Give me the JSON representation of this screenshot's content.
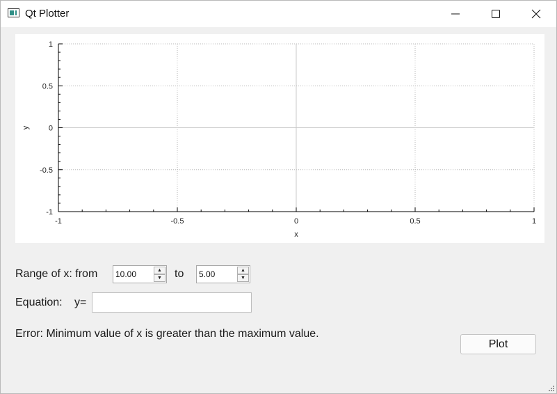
{
  "window": {
    "title": "Qt Plotter",
    "controls": {
      "minimize_icon": "minimize-icon",
      "maximize_icon": "maximize-icon",
      "close_icon": "close-icon"
    }
  },
  "plot": {
    "xlabel": "x",
    "ylabel": "y",
    "xlim": [
      -1,
      1
    ],
    "ylim": [
      -1,
      1
    ],
    "x_ticks": [
      "-1",
      "-0.5",
      "0",
      "0.5",
      "1"
    ],
    "y_ticks": [
      "1",
      "0.5",
      "0",
      "-0.5",
      "-1"
    ],
    "grid": true
  },
  "chart_data": {
    "type": "line",
    "title": "",
    "xlabel": "x",
    "ylabel": "y",
    "xlim": [
      -1,
      1
    ],
    "ylim": [
      -1,
      1
    ],
    "x_tick_labels": [
      "-1",
      "-0.5",
      "0",
      "0.5",
      "1"
    ],
    "y_tick_labels": [
      "-1",
      "-0.5",
      "0",
      "0.5",
      "1"
    ],
    "series": [],
    "grid": true
  },
  "range": {
    "label": "Range of x: from",
    "from_value": "10.00",
    "to_label": "to",
    "to_value": "5.00"
  },
  "equation": {
    "label": "Equation:",
    "prefix": "y=",
    "value": ""
  },
  "error_message": "Error: Minimum value of x is greater than the maximum value.",
  "plot_button": "Plot",
  "colors": {
    "window_bg": "#f0f0f0",
    "plot_bg": "#ffffff",
    "axis": "#000000",
    "grid": "#b8b8b8"
  }
}
